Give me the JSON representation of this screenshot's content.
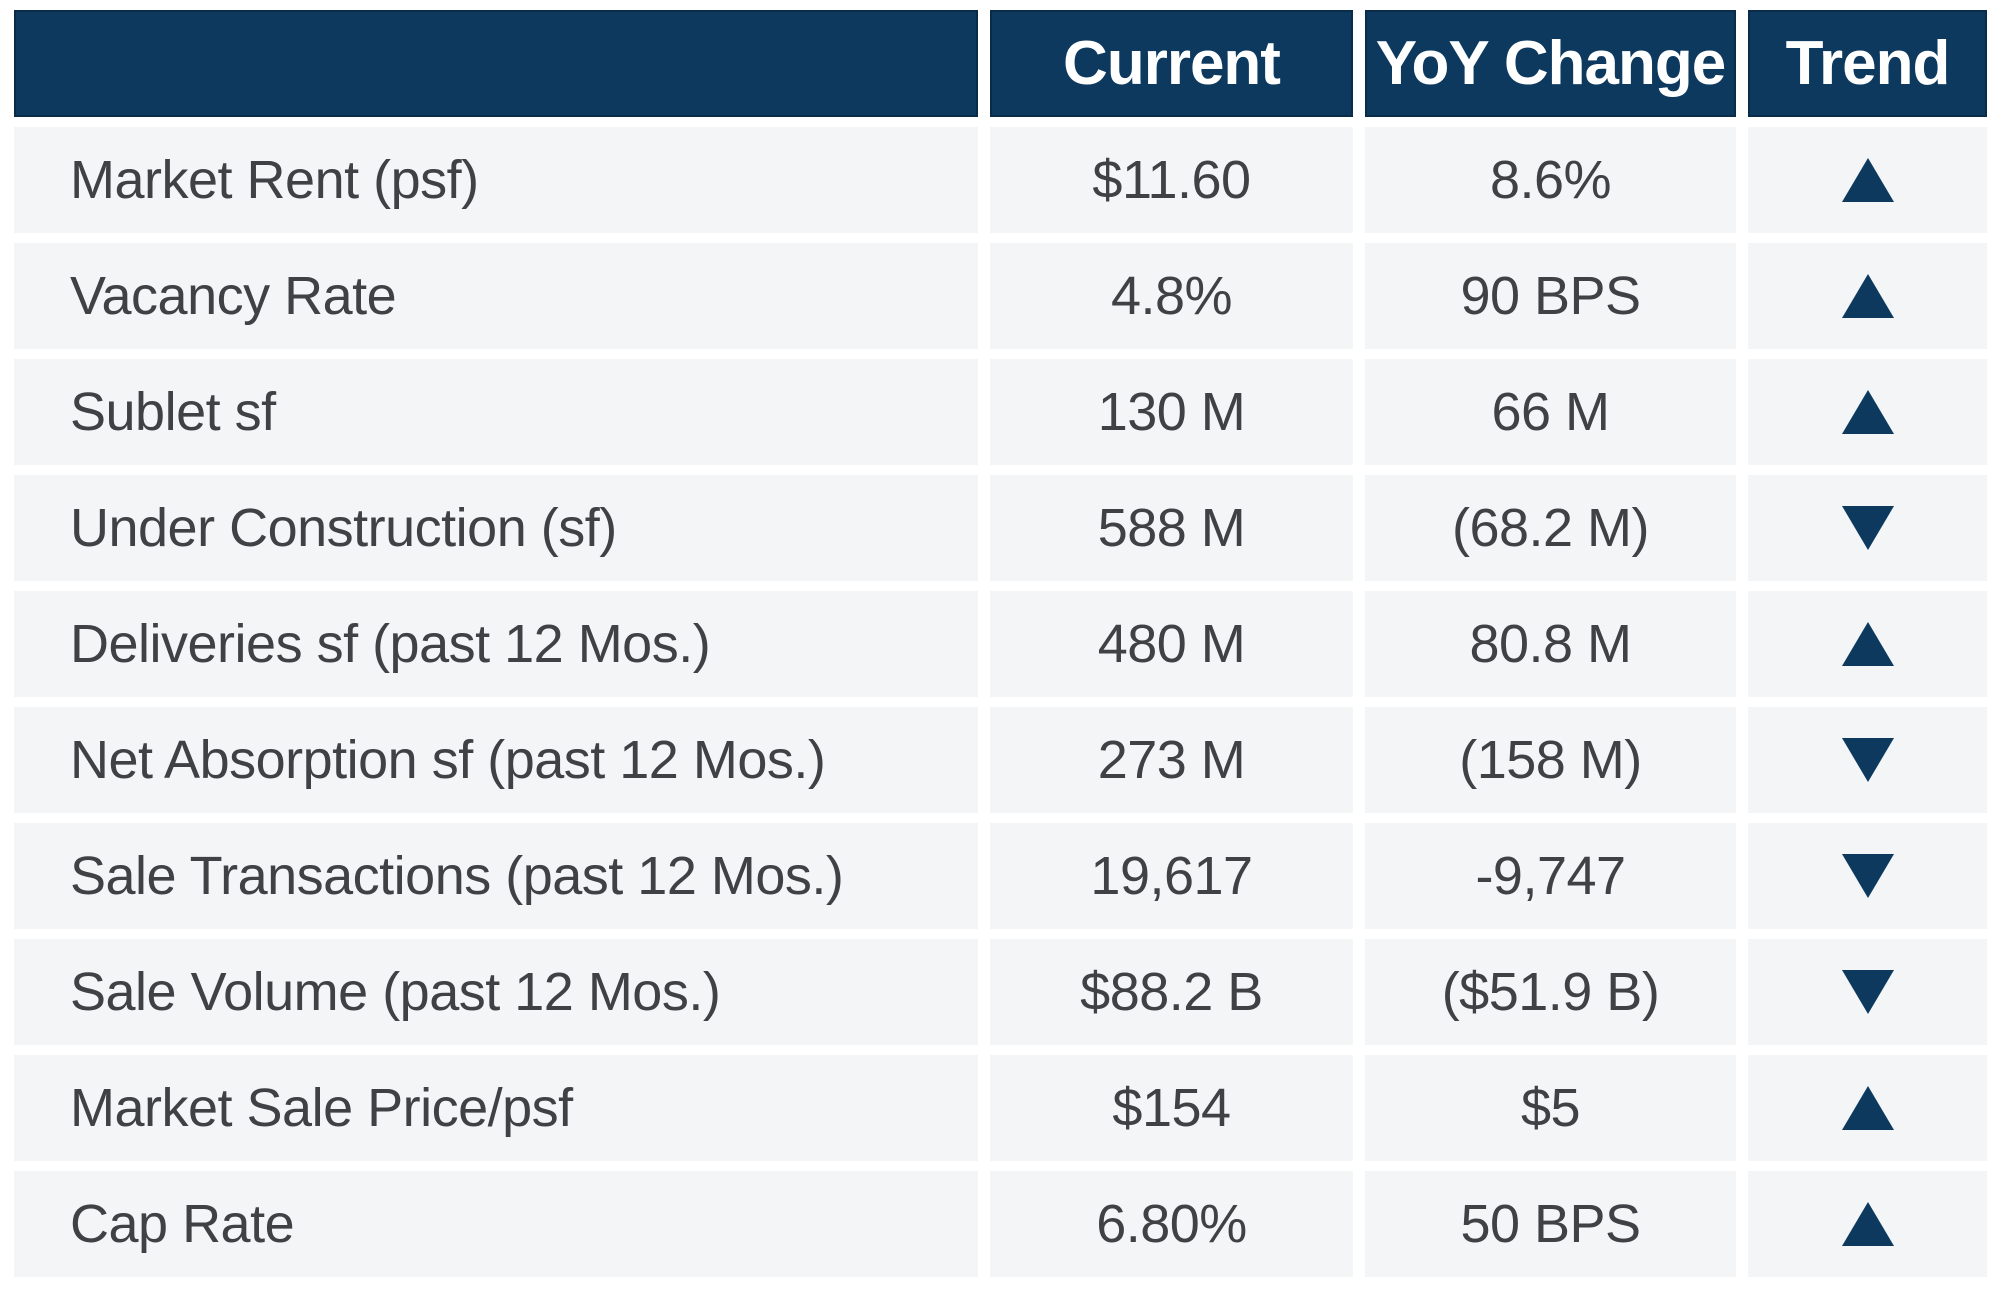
{
  "colors": {
    "navy": "#0d395e",
    "header-border": "#0a2c48",
    "row-bg": "#f4f5f7",
    "text": "#3f4145",
    "header-text": "#ffffff"
  },
  "chart_data": {
    "type": "table",
    "title": "",
    "columns": [
      "",
      "Current",
      "YoY Change",
      "Trend"
    ],
    "rows": [
      {
        "label": "Market Rent (psf)",
        "current": "$11.60",
        "yoy": "8.6%",
        "trend": "up"
      },
      {
        "label": "Vacancy Rate",
        "current": "4.8%",
        "yoy": "90 BPS",
        "trend": "up"
      },
      {
        "label": "Sublet sf",
        "current": "130 M",
        "yoy": "66 M",
        "trend": "up"
      },
      {
        "label": "Under Construction (sf)",
        "current": "588 M",
        "yoy": "(68.2 M)",
        "trend": "down"
      },
      {
        "label": "Deliveries sf (past 12 Mos.)",
        "current": "480 M",
        "yoy": "80.8 M",
        "trend": "up"
      },
      {
        "label": "Net Absorption sf (past 12 Mos.)",
        "current": "273 M",
        "yoy": "(158 M)",
        "trend": "down"
      },
      {
        "label": "Sale Transactions (past 12 Mos.)",
        "current": "19,617",
        "yoy": "-9,747",
        "trend": "down"
      },
      {
        "label": "Sale Volume (past 12 Mos.)",
        "current": "$88.2 B",
        "yoy": "($51.9 B)",
        "trend": "down"
      },
      {
        "label": "Market Sale Price/psf",
        "current": "$154",
        "yoy": "$5",
        "trend": "up"
      },
      {
        "label": "Cap Rate",
        "current": "6.80%",
        "yoy": "50 BPS",
        "trend": "up"
      }
    ]
  }
}
